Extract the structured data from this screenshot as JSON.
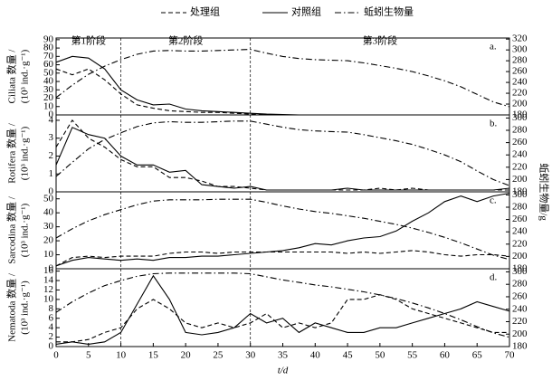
{
  "chart_data": [
    {
      "type": "line",
      "panel_label": "a.",
      "ylabel": [
        "Ciliata 数量 /",
        "(10³ ind.·g⁻¹)"
      ],
      "stage_bounds": [
        10,
        30
      ],
      "stage_labels": [
        "第1阶段",
        "第2阶段",
        "第3阶段"
      ],
      "x": [
        0,
        2.5,
        5,
        7.5,
        10,
        12.5,
        15,
        17.5,
        20,
        22.5,
        25,
        27.5,
        30,
        32.5,
        35,
        37.5,
        40,
        42.5,
        45,
        47.5,
        50,
        52.5,
        55,
        57.5,
        60,
        62.5,
        65,
        67.5,
        70
      ],
      "xlim": [
        0,
        70
      ],
      "ylim": [
        0,
        92
      ],
      "yticks": [
        0,
        10,
        20,
        30,
        40,
        50,
        60,
        70,
        80,
        90
      ],
      "y2lim": [
        180,
        322
      ],
      "y2ticks": [
        180,
        200,
        220,
        240,
        260,
        280,
        300,
        320
      ],
      "series": [
        {
          "name": "处理组",
          "color": "#000",
          "line_style": "dashed",
          "values": [
            55,
            48,
            55,
            42,
            25,
            12,
            8,
            5,
            4,
            3,
            3,
            2,
            1,
            0.5,
            0,
            0,
            0,
            0,
            0,
            0,
            0,
            0,
            0,
            0,
            0,
            0,
            0,
            0,
            0
          ]
        },
        {
          "name": "对照组",
          "color": "#000",
          "line_style": "solid",
          "values": [
            63,
            70,
            68,
            55,
            30,
            18,
            12,
            13,
            7,
            5,
            4,
            3,
            2,
            1,
            0.5,
            0,
            0,
            0,
            0,
            0,
            0,
            0,
            0,
            0,
            0,
            0,
            0,
            0,
            0
          ]
        },
        {
          "name": "蚯蚓生物量",
          "color": "#000",
          "line_style": "dashdot",
          "axis": "y2",
          "values": [
            212,
            235,
            255,
            270,
            282,
            292,
            298,
            299,
            298,
            298,
            299,
            300,
            301,
            294,
            288,
            284,
            282,
            281,
            280,
            276,
            271,
            266,
            260,
            252,
            243,
            232,
            218,
            204,
            195
          ]
        }
      ]
    },
    {
      "type": "line",
      "panel_label": "b.",
      "ylabel": [
        "Rotifera 数量 /",
        "(10³ ind.·g⁻¹)"
      ],
      "y2label": "蚯蚓生物量/g",
      "x": [
        0,
        2.5,
        5,
        7.5,
        10,
        12.5,
        15,
        17.5,
        20,
        22.5,
        25,
        27.5,
        30,
        32.5,
        35,
        37.5,
        40,
        42.5,
        45,
        47.5,
        50,
        52.5,
        55,
        57.5,
        60,
        62.5,
        65,
        67.5,
        70
      ],
      "xlim": [
        0,
        70
      ],
      "ylim": [
        0,
        4.3
      ],
      "yticks": [
        0,
        1,
        2,
        3,
        4
      ],
      "y2lim": [
        180,
        305
      ],
      "y2ticks": [
        180,
        200,
        220,
        240,
        260,
        280,
        300
      ],
      "series": [
        {
          "color": "#000",
          "line_style": "dashed",
          "values": [
            2.5,
            4.0,
            3.0,
            2.5,
            1.8,
            1.4,
            1.4,
            0.8,
            0.8,
            0.6,
            0.3,
            0.3,
            0.2,
            0.1,
            0.1,
            0.1,
            0.1,
            0.1,
            0.1,
            0.1,
            0.2,
            0.1,
            0.2,
            0.1,
            0.1,
            0.1,
            0.1,
            0.1,
            0.1
          ]
        },
        {
          "color": "#000",
          "line_style": "solid",
          "values": [
            1.5,
            3.6,
            3.2,
            3.0,
            2.0,
            1.5,
            1.5,
            1.1,
            1.2,
            0.4,
            0.3,
            0.2,
            0.3,
            0.1,
            0.1,
            0.1,
            0.1,
            0.1,
            0.2,
            0.1,
            0.1,
            0.1,
            0.1,
            0.1,
            0.1,
            0.1,
            0.1,
            0.1,
            0.2
          ]
        },
        {
          "color": "#000",
          "line_style": "dashdot",
          "axis": "y2",
          "values": [
            205,
            228,
            250,
            265,
            276,
            286,
            292,
            294,
            293,
            293,
            294,
            295,
            295,
            290,
            285,
            281,
            279,
            278,
            277,
            273,
            268,
            263,
            257,
            249,
            240,
            229,
            214,
            200,
            190
          ]
        }
      ]
    },
    {
      "type": "line",
      "panel_label": "c.",
      "ylabel": [
        "Sarcodina 数量 /",
        "(10³ ind.·g⁻¹)"
      ],
      "x": [
        0,
        2.5,
        5,
        7.5,
        10,
        12.5,
        15,
        17.5,
        20,
        22.5,
        25,
        27.5,
        30,
        32.5,
        35,
        37.5,
        40,
        42.5,
        45,
        47.5,
        50,
        52.5,
        55,
        57.5,
        60,
        62.5,
        65,
        67.5,
        70
      ],
      "xlim": [
        0,
        70
      ],
      "ylim": [
        0,
        55
      ],
      "yticks": [
        0,
        10,
        20,
        30,
        40,
        50
      ],
      "y2lim": [
        180,
        305
      ],
      "y2ticks": [
        180,
        200,
        220,
        240,
        260,
        280,
        300
      ],
      "series": [
        {
          "color": "#000",
          "line_style": "dashed",
          "values": [
            2,
            8,
            9,
            8,
            9,
            9,
            9,
            11,
            12,
            12,
            11,
            12,
            12,
            12,
            12,
            12,
            12,
            12,
            11,
            12,
            11,
            12,
            13,
            12,
            10,
            9,
            10,
            10,
            9
          ]
        },
        {
          "color": "#000",
          "line_style": "solid",
          "values": [
            2,
            6,
            8,
            7,
            6,
            7,
            6,
            8,
            8,
            9,
            9,
            10,
            11,
            12,
            13,
            15,
            18,
            17,
            20,
            22,
            23,
            27,
            34,
            40,
            48,
            52,
            48,
            52,
            54
          ]
        },
        {
          "color": "#000",
          "line_style": "dashdot",
          "axis": "y2",
          "values": [
            230,
            245,
            258,
            268,
            276,
            284,
            290,
            292,
            292,
            292,
            293,
            293,
            293,
            288,
            282,
            277,
            273,
            270,
            266,
            262,
            257,
            252,
            246,
            239,
            231,
            222,
            212,
            202,
            195
          ]
        }
      ]
    },
    {
      "type": "line",
      "panel_label": "d.",
      "ylabel": [
        "Nematoda 数量 /",
        "(10³ ind.·g⁻¹)"
      ],
      "xlabel": "t/d",
      "x": [
        0,
        2.5,
        5,
        7.5,
        10,
        12.5,
        15,
        17.5,
        20,
        22.5,
        25,
        27.5,
        30,
        32.5,
        35,
        37.5,
        40,
        42.5,
        45,
        47.5,
        50,
        52.5,
        55,
        57.5,
        60,
        62.5,
        65,
        67.5,
        70
      ],
      "xlim": [
        0,
        70
      ],
      "xticks": [
        0,
        5,
        10,
        15,
        20,
        25,
        30,
        35,
        40,
        45,
        50,
        55,
        60,
        65,
        70
      ],
      "ylim": [
        0,
        16.5
      ],
      "yticks": [
        0,
        2,
        4,
        6,
        8,
        10,
        12,
        14,
        16
      ],
      "y2lim": [
        180,
        305
      ],
      "y2ticks": [
        180,
        200,
        220,
        240,
        260,
        280,
        300
      ],
      "series": [
        {
          "color": "#000",
          "line_style": "dashed",
          "values": [
            1,
            1,
            1.5,
            3,
            4,
            8,
            10,
            8,
            5,
            4,
            5,
            4,
            5,
            7,
            4,
            5,
            4,
            5,
            10,
            10,
            11,
            10,
            8,
            7,
            6,
            5,
            4,
            3,
            3
          ]
        },
        {
          "color": "#000",
          "line_style": "solid",
          "values": [
            0.5,
            1,
            0.5,
            1,
            3,
            9,
            15,
            10,
            3,
            2.5,
            3,
            4,
            7,
            5,
            6,
            3,
            5,
            4,
            3,
            3,
            4,
            4,
            5,
            6,
            7,
            8,
            9.5,
            8.5,
            7.5
          ]
        },
        {
          "color": "#000",
          "line_style": "dashdot",
          "axis": "y2",
          "values": [
            235,
            252,
            266,
            278,
            286,
            293,
            297,
            298,
            298,
            298,
            298,
            298,
            297,
            292,
            287,
            283,
            279,
            276,
            272,
            268,
            263,
            257,
            250,
            242,
            233,
            223,
            212,
            202,
            195
          ]
        }
      ]
    }
  ]
}
